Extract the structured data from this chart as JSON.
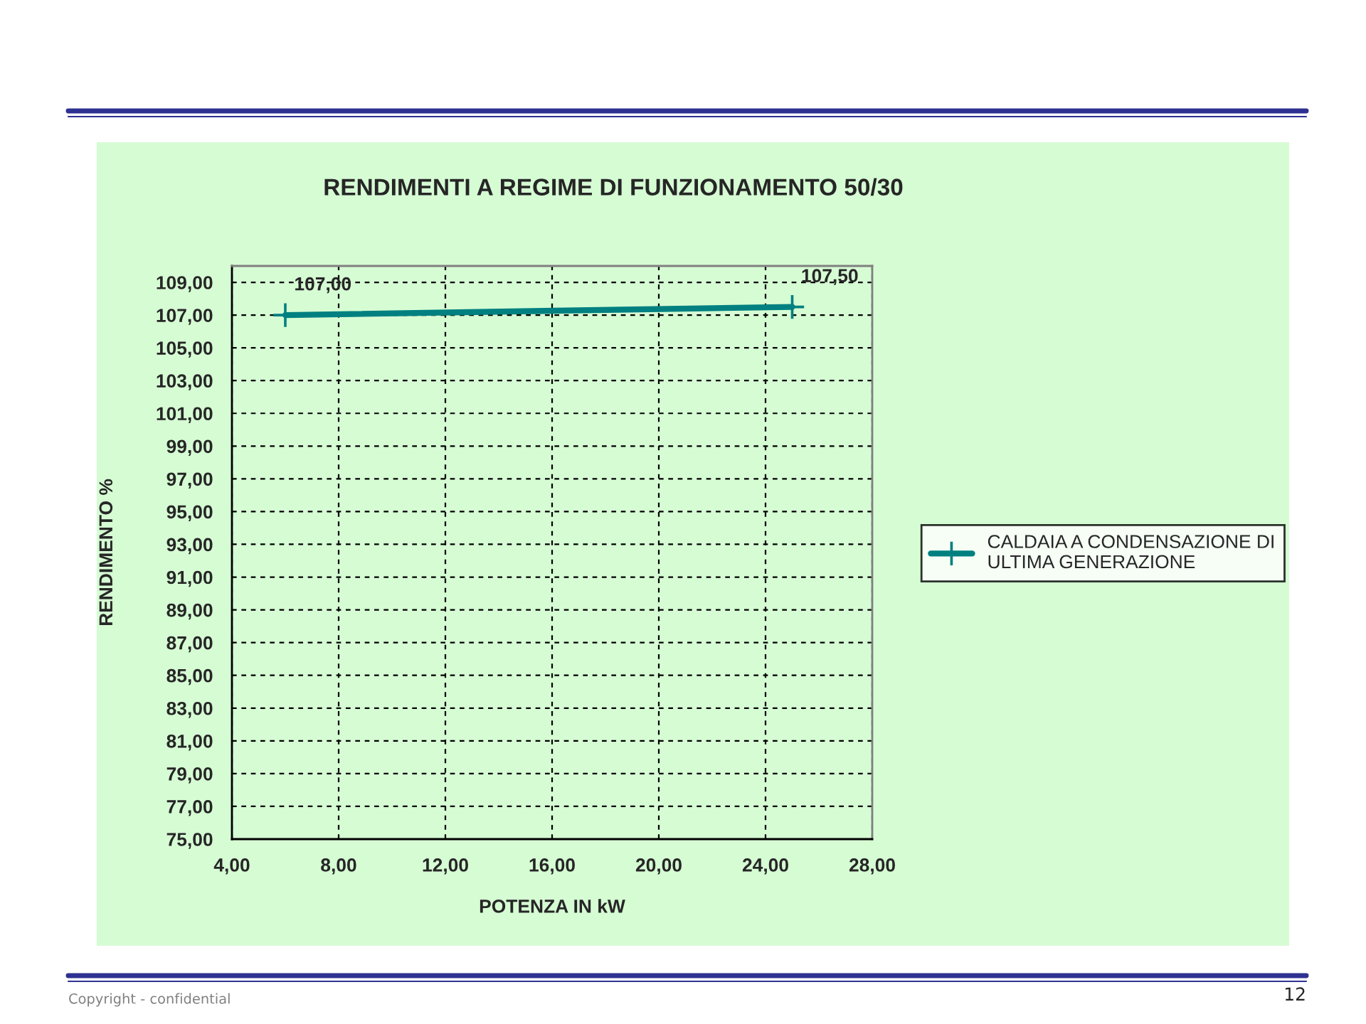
{
  "chart_data": {
    "type": "line",
    "title": "RENDIMENTI A REGIME DI FUNZIONAMENTO 50/30",
    "xlabel": "POTENZA IN kW",
    "ylabel": "RENDIMENTO %",
    "x": [
      6,
      25
    ],
    "series": [
      {
        "name": "CALDAIA A CONDENSAZIONE DI\nULTIMA GENERAZIONE",
        "color": "#008080",
        "values": [
          107.0,
          107.5
        ],
        "value_labels": [
          "107,00",
          "107,50"
        ]
      }
    ],
    "xlim": [
      4,
      28
    ],
    "xticks": [
      {
        "value": 4,
        "label": "4,00"
      },
      {
        "value": 8,
        "label": "8,00"
      },
      {
        "value": 12,
        "label": "12,00"
      },
      {
        "value": 16,
        "label": "16,00"
      },
      {
        "value": 20,
        "label": "20,00"
      },
      {
        "value": 24,
        "label": "24,00"
      },
      {
        "value": 28,
        "label": "28,00"
      }
    ],
    "ylim": [
      75,
      110
    ],
    "yticks": [
      {
        "value": 75,
        "label": "75,00"
      },
      {
        "value": 77,
        "label": "77,00"
      },
      {
        "value": 79,
        "label": "79,00"
      },
      {
        "value": 81,
        "label": "81,00"
      },
      {
        "value": 83,
        "label": "83,00"
      },
      {
        "value": 85,
        "label": "85,00"
      },
      {
        "value": 87,
        "label": "87,00"
      },
      {
        "value": 89,
        "label": "89,00"
      },
      {
        "value": 91,
        "label": "91,00"
      },
      {
        "value": 93,
        "label": "93,00"
      },
      {
        "value": 95,
        "label": "95,00"
      },
      {
        "value": 97,
        "label": "97,00"
      },
      {
        "value": 99,
        "label": "99,00"
      },
      {
        "value": 101,
        "label": "101,00"
      },
      {
        "value": 103,
        "label": "103,00"
      },
      {
        "value": 105,
        "label": "105,00"
      },
      {
        "value": 107,
        "label": "107,00"
      },
      {
        "value": 109,
        "label": "109,00"
      }
    ],
    "grid": true,
    "legend": "right",
    "marker": "cross",
    "line_style": "solid",
    "annotations": [
      "Copyright - confidential",
      "12"
    ]
  }
}
